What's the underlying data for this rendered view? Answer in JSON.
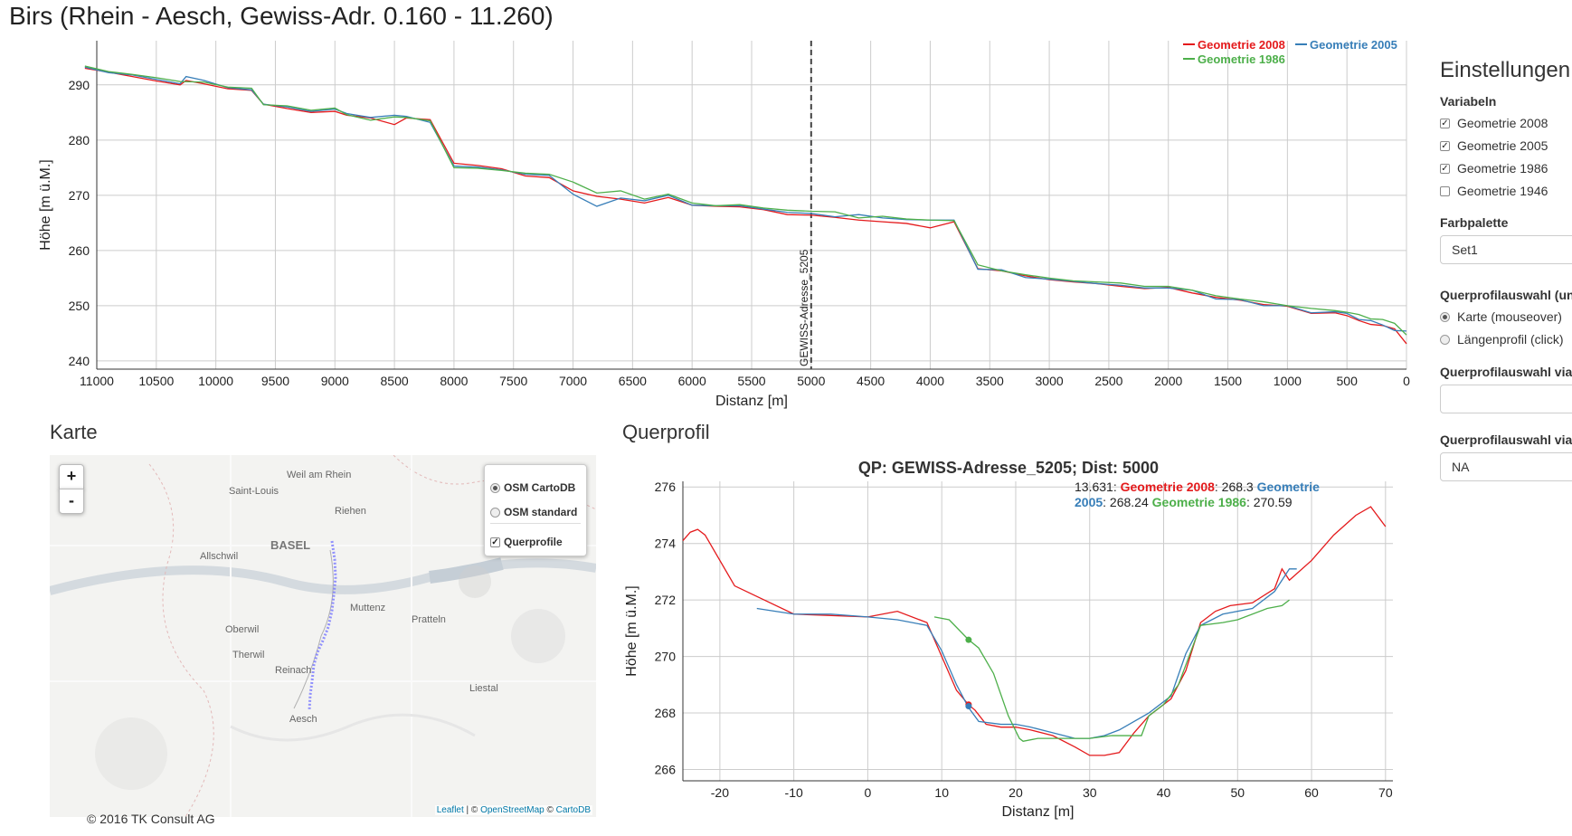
{
  "page": {
    "title": "Birs (Rhein - Aesch, Gewiss-Adr. 0.160 - 11.260)"
  },
  "colors": {
    "g2008": "#e41a1c",
    "g2005": "#377eb8",
    "g1986": "#4daf4a",
    "grid": "#cccccc"
  },
  "longitudinal": {
    "ylabel": "Höhe [m ü.M.]",
    "xlabel": "Distanz [m]",
    "x_ticks": [
      "11000",
      "10500",
      "10000",
      "9500",
      "9000",
      "8500",
      "8000",
      "7500",
      "7000",
      "6500",
      "6000",
      "5500",
      "5000",
      "4500",
      "4000",
      "3500",
      "3000",
      "2500",
      "2000",
      "1500",
      "1000",
      "500",
      "0"
    ],
    "y_ticks": [
      "240",
      "250",
      "260",
      "270",
      "280",
      "290"
    ],
    "marker_label": "GEWISS-Adresse_5205",
    "legend": [
      {
        "name": "Geometrie 2008",
        "key": "g2008"
      },
      {
        "name": "Geometrie 2005",
        "key": "g2005"
      },
      {
        "name": "Geometrie 1986",
        "key": "g1986"
      }
    ]
  },
  "chart_data": [
    {
      "type": "line",
      "title": "",
      "xlabel": "Distanz [m]",
      "ylabel": "Höhe [m ü.M.]",
      "xlim": [
        11000,
        0
      ],
      "ylim": [
        238.5,
        298
      ],
      "grid": true,
      "legend": "top-right",
      "marker_x": 5000,
      "series": [
        {
          "name": "Geometrie 2008",
          "color": "#e41a1c",
          "x": [
            11100,
            10900,
            10700,
            10500,
            10300,
            10250,
            10100,
            9900,
            9700,
            9600,
            9400,
            9200,
            9000,
            8900,
            8700,
            8500,
            8400,
            8200,
            8000,
            7800,
            7600,
            7400,
            7200,
            7000,
            6800,
            6600,
            6400,
            6200,
            6000,
            5800,
            5600,
            5400,
            5200,
            5000,
            4800,
            4600,
            4400,
            4200,
            4000,
            3800,
            3600,
            3400,
            3200,
            3000,
            2800,
            2600,
            2400,
            2200,
            2000,
            1800,
            1600,
            1400,
            1200,
            1000,
            800,
            600,
            500,
            400,
            300,
            200,
            100,
            0
          ],
          "y": [
            293,
            292.3,
            291.5,
            290.7,
            290,
            290.8,
            290.2,
            289.3,
            289,
            286.5,
            285.7,
            285,
            285.2,
            284.5,
            284,
            282.8,
            284,
            283.7,
            275.8,
            275.4,
            274.8,
            273.5,
            273.2,
            270.8,
            269.8,
            269.3,
            268.6,
            269.6,
            268.2,
            268,
            267.9,
            267.4,
            266.5,
            266.4,
            266,
            265.5,
            265.2,
            264.9,
            264.1,
            265.2,
            256.7,
            256.3,
            255.4,
            254.7,
            254.3,
            254,
            253.5,
            253.1,
            253.3,
            252.3,
            251.5,
            251,
            250.2,
            249.9,
            248.6,
            248.7,
            248.2,
            247.3,
            246.6,
            246.4,
            245.8,
            243.1
          ]
        },
        {
          "name": "Geometrie 2005",
          "color": "#377eb8",
          "x": [
            11100,
            10900,
            10700,
            10500,
            10300,
            10250,
            10100,
            9900,
            9700,
            9600,
            9400,
            9200,
            9000,
            8900,
            8700,
            8500,
            8400,
            8200,
            8000,
            7800,
            7600,
            7400,
            7200,
            7000,
            6800,
            6600,
            6400,
            6200,
            6000,
            5800,
            5600,
            5400,
            5200,
            5000,
            4800,
            4600,
            4400,
            4200,
            4000,
            3800,
            3600,
            3400,
            3200,
            3000,
            2800,
            2600,
            2400,
            2200,
            2000,
            1800,
            1600,
            1400,
            1200,
            1000,
            800,
            600,
            500,
            400,
            300,
            200,
            100,
            0
          ],
          "y": [
            293.2,
            292.2,
            291.8,
            291,
            290.2,
            291.5,
            290.8,
            289.5,
            289.1,
            286.5,
            286,
            285.2,
            285.6,
            284.8,
            284.1,
            284.5,
            284.3,
            283.2,
            275.3,
            275.1,
            274.6,
            273.8,
            273.6,
            270.2,
            268,
            269.5,
            269,
            270,
            268.2,
            268.1,
            268.1,
            267.5,
            266.9,
            266.7,
            266.1,
            266.5,
            265.9,
            265.6,
            265.5,
            265.5,
            256.6,
            256.5,
            255.1,
            254.8,
            254.4,
            254,
            253.7,
            253.2,
            253.2,
            252.8,
            251.2,
            251.1,
            250,
            250,
            248.7,
            248.9,
            248.6,
            247.5,
            247.3,
            246.5,
            245.5,
            245.4
          ]
        },
        {
          "name": "Geometrie 1986",
          "color": "#4daf4a",
          "x": [
            11100,
            10900,
            10700,
            10500,
            10300,
            10100,
            9900,
            9700,
            9600,
            9400,
            9200,
            9000,
            8900,
            8700,
            8500,
            8400,
            8200,
            8000,
            7800,
            7600,
            7400,
            7200,
            7000,
            6800,
            6600,
            6400,
            6200,
            6000,
            5800,
            5600,
            5400,
            5200,
            5000,
            4800,
            4600,
            4400,
            4200,
            4000,
            3800,
            3600,
            3400,
            3200,
            3000,
            2800,
            2600,
            2400,
            2200,
            2000,
            1800,
            1600,
            1400,
            1200,
            1000,
            800,
            600,
            500,
            400,
            300,
            200,
            100,
            0
          ],
          "y": [
            293.4,
            292.4,
            291.9,
            291.3,
            290.6,
            290.5,
            289.6,
            289.4,
            286.4,
            286.2,
            285.4,
            285.8,
            284.6,
            283.6,
            284.2,
            284.1,
            283.5,
            275,
            274.9,
            274.5,
            274,
            273.8,
            272.4,
            270.4,
            270.8,
            269.3,
            270.2,
            268.6,
            268.1,
            268.3,
            267.7,
            267.3,
            267.1,
            267,
            265.9,
            266.2,
            265.7,
            265.5,
            265.4,
            257.4,
            256.3,
            255.6,
            255,
            254.5,
            254.3,
            254.1,
            253.5,
            253.5,
            252.8,
            251.8,
            251.2,
            250.7,
            250,
            249.5,
            249.1,
            248.8,
            248.4,
            247.6,
            247.5,
            246.8,
            244.7
          ]
        }
      ]
    },
    {
      "type": "line",
      "title": "QP: GEWISS-Adresse_5205; Dist: 5000",
      "xlabel": "Distanz [m]",
      "ylabel": "Höhe [m ü.M.]",
      "xlim": [
        -25,
        71
      ],
      "ylim": [
        265.6,
        276.2
      ],
      "grid": true,
      "series": [
        {
          "name": "Geometrie 2008",
          "color": "#e41a1c",
          "x": [
            -25,
            -24,
            -23,
            -22,
            -18,
            -10,
            0,
            4,
            8,
            10,
            12,
            13.6,
            14.5,
            16,
            18,
            20,
            22,
            25,
            28,
            30,
            32,
            34,
            36,
            38,
            41,
            43,
            45,
            47,
            49,
            52,
            55,
            56,
            57,
            60,
            63,
            66,
            68,
            70
          ],
          "y": [
            274.1,
            274.4,
            274.5,
            274.3,
            272.5,
            271.5,
            271.4,
            271.6,
            271.2,
            270,
            268.8,
            268.3,
            268.1,
            267.6,
            267.5,
            267.5,
            267.4,
            267.2,
            266.8,
            266.5,
            266.5,
            266.6,
            267.3,
            267.9,
            268.5,
            269.5,
            271.2,
            271.6,
            271.8,
            271.9,
            272.4,
            273.1,
            272.7,
            273.4,
            274.3,
            275,
            275.3,
            274.6
          ]
        },
        {
          "name": "Geometrie 2005",
          "color": "#377eb8",
          "x": [
            -15,
            -10,
            -5,
            0,
            4,
            8,
            10,
            12,
            13.6,
            15,
            18,
            20,
            22,
            25,
            28,
            30,
            32,
            34,
            36,
            38,
            41,
            43,
            45,
            48,
            52,
            55,
            57,
            58
          ],
          "y": [
            271.7,
            271.5,
            271.5,
            271.4,
            271.3,
            271.1,
            270.2,
            269,
            268.2,
            267.7,
            267.6,
            267.6,
            267.5,
            267.3,
            267.1,
            267.1,
            267.2,
            267.4,
            267.7,
            268,
            268.6,
            270.1,
            271.1,
            271.5,
            271.7,
            272.3,
            273.1,
            273.1
          ]
        },
        {
          "name": "Geometrie 1986",
          "color": "#4daf4a",
          "x": [
            9,
            11,
            13.6,
            15,
            17,
            19,
            20.5,
            21,
            23,
            27,
            30,
            33,
            37,
            38,
            40,
            42,
            45,
            48,
            50,
            54,
            56,
            57
          ],
          "y": [
            271.4,
            271.3,
            270.6,
            270.3,
            269.4,
            267.9,
            267.1,
            267,
            267.1,
            267.1,
            267.1,
            267.2,
            267.2,
            267.9,
            268.3,
            269,
            271.1,
            271.2,
            271.3,
            271.7,
            271.8,
            272
          ]
        }
      ],
      "hover_x": 13.631
    }
  ],
  "map": {
    "title": "Karte",
    "zoom_in": "+",
    "zoom_out": "-",
    "layers": [
      "OSM CartoDB",
      "OSM standard",
      "Querprofile"
    ],
    "attribution": {
      "leaflet": "Leaflet",
      "sep": " | © ",
      "osm": "OpenStreetMap",
      "sep2": " © ",
      "carto": "CartoDB"
    },
    "towns": [
      "Weil am Rhein",
      "Saint-Louis",
      "Riehen",
      "Allschwil",
      "BASEL",
      "Muttenz",
      "Pratteln",
      "Oberwil",
      "Therwil",
      "Reinach",
      "Liestal",
      "Aesch"
    ]
  },
  "footer": "© 2016 TK Consult AG",
  "cross": {
    "title": "Querprofil",
    "chart_title": "QP: GEWISS-Adresse_5205; Dist: 5000",
    "ylabel": "Höhe [m ü.M.]",
    "xlabel": "Distanz [m]",
    "x_ticks": [
      "-20",
      "-10",
      "0",
      "10",
      "20",
      "30",
      "40",
      "50",
      "60",
      "70"
    ],
    "y_ticks": [
      "266",
      "268",
      "270",
      "272",
      "274",
      "276"
    ],
    "tooltip": {
      "x": "13.631",
      "items": [
        {
          "name": "Geometrie 2008",
          "value": "268.3"
        },
        {
          "name": "Geometrie 2005",
          "value": "268.24"
        },
        {
          "name": "Geometrie 1986",
          "value": "270.59"
        }
      ]
    }
  },
  "settings": {
    "title": "Einstellungen",
    "variables_label": "Variabeln",
    "variables": [
      {
        "label": "Geometrie 2008",
        "checked": true
      },
      {
        "label": "Geometrie 2005",
        "checked": true
      },
      {
        "label": "Geometrie 1986",
        "checked": true
      },
      {
        "label": "Geometrie 1946",
        "checked": false
      }
    ],
    "palette_label": "Farbpalette",
    "palette_value": "Set1",
    "qp_select_label": "Querprofilauswahl (un",
    "qp_options": [
      {
        "label": "Karte (mouseover)",
        "selected": true
      },
      {
        "label": "Längenprofil (click)",
        "selected": false
      }
    ],
    "qp_via_label_1": "Querprofilauswahl via",
    "qp_via_value_1": "",
    "qp_via_label_2": "Querprofilauswahl via",
    "qp_via_value_2": "NA"
  }
}
